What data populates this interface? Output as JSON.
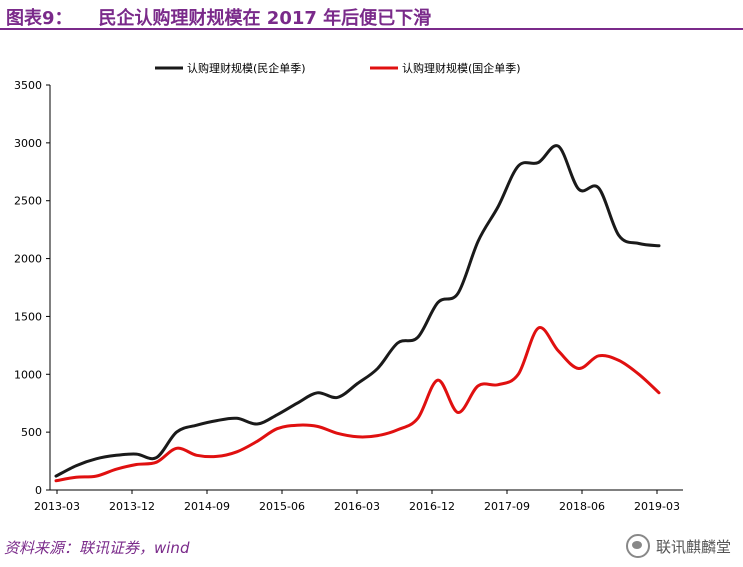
{
  "header": {
    "figure_label": "图表9：",
    "title": "民企认购理财规模在 2017 年后便已下滑"
  },
  "footer": {
    "source": "资料来源：联讯证券，wind",
    "watermark": "联讯麒麟堂"
  },
  "chart_data": {
    "type": "line",
    "title": "",
    "xlabel": "",
    "ylabel": "",
    "ylim": [
      0,
      3500
    ],
    "yticks": [
      0,
      500,
      1000,
      1500,
      2000,
      2500,
      3000,
      3500
    ],
    "x_tick_labels": [
      "2013-03",
      "2013-12",
      "2014-09",
      "2015-06",
      "2016-03",
      "2016-12",
      "2017-09",
      "2018-06",
      "2019-03"
    ],
    "grid": false,
    "legend": "top-center",
    "series": [
      {
        "name": "认购理财规模(民企单季)",
        "color": "#1a1a1a",
        "values": [
          120,
          210,
          270,
          300,
          310,
          280,
          500,
          560,
          600,
          620,
          570,
          650,
          750,
          840,
          800,
          920,
          1050,
          1270,
          1320,
          1620,
          1700,
          2150,
          2450,
          2800,
          2830,
          2970,
          2600,
          2610,
          2200,
          2130,
          2110
        ]
      },
      {
        "name": "认购理财规模(国企单季)",
        "color": "#e01010",
        "values": [
          80,
          110,
          120,
          180,
          220,
          240,
          360,
          300,
          290,
          330,
          420,
          530,
          560,
          550,
          490,
          460,
          470,
          520,
          620,
          950,
          670,
          900,
          910,
          1000,
          1400,
          1200,
          1050,
          1160,
          1120,
          1000,
          840
        ]
      }
    ]
  }
}
